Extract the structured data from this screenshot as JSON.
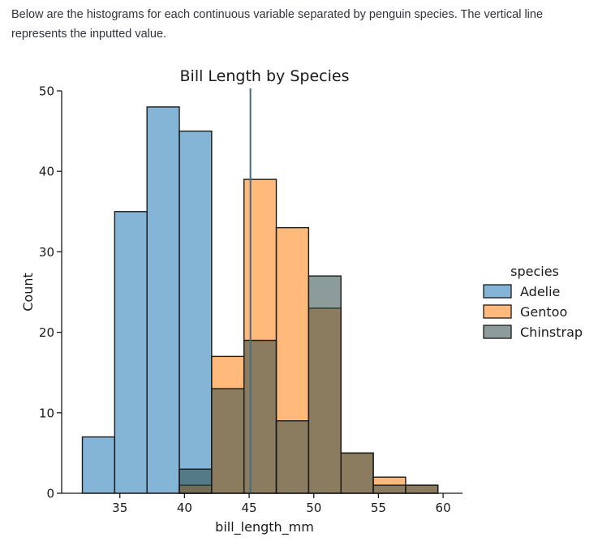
{
  "intro_text": "Below are the histograms for each continuous variable separated by penguin species. The vertical line represents the inputted value.",
  "chart_data": {
    "type": "bar",
    "title": "Bill Length by Species",
    "xlabel": "bill_length_mm",
    "ylabel": "Count",
    "xlim": [
      30.5,
      61.5
    ],
    "ylim": [
      0,
      50
    ],
    "xticks": [
      35,
      40,
      45,
      50,
      55,
      60
    ],
    "yticks": [
      0,
      10,
      20,
      30,
      40,
      50
    ],
    "bin_edges": [
      32.1,
      34.6,
      37.1,
      39.6,
      42.1,
      44.6,
      47.1,
      49.6,
      52.1,
      54.6,
      57.1,
      59.6
    ],
    "series": [
      {
        "name": "Adelie",
        "color": "#1f77b4",
        "values": [
          7,
          35,
          48,
          45,
          0,
          0,
          0,
          0,
          0,
          0,
          0
        ]
      },
      {
        "name": "Gentoo",
        "color": "#ff7f0e",
        "values": [
          0,
          0,
          0,
          1,
          17,
          39,
          33,
          23,
          5,
          2,
          1
        ]
      },
      {
        "name": "Chinstrap",
        "color": "#2e4a48",
        "values": [
          0,
          0,
          0,
          3,
          13,
          19,
          9,
          27,
          5,
          1,
          1
        ]
      }
    ],
    "overlap_color": "#b8953a",
    "reference_line": {
      "x": 45.1,
      "color": "#4a6a84"
    },
    "legend": {
      "title": "species",
      "position": "right"
    },
    "grid": false
  }
}
